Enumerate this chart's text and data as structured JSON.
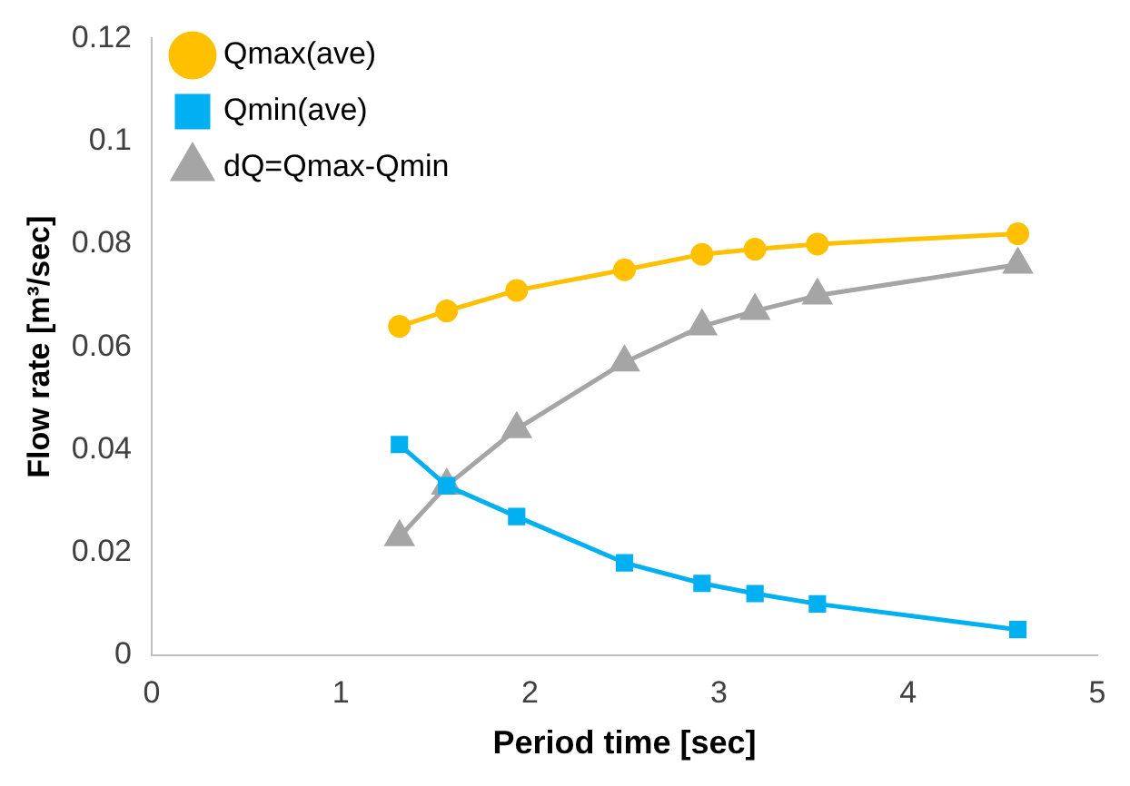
{
  "chart_data": {
    "type": "line",
    "xlabel": "Period time [sec]",
    "ylabel": "Flow rate [m³/sec]",
    "xlim": [
      0,
      5
    ],
    "xticks": [
      0,
      1,
      2,
      3,
      4,
      5
    ],
    "ylim": [
      0,
      0.12
    ],
    "yticks": [
      0,
      0.02,
      0.04,
      0.06,
      0.08,
      0.1,
      0.12
    ],
    "grid": false,
    "legend": "top left",
    "line_style": "solid",
    "x": [
      1.31,
      1.56,
      1.93,
      2.5,
      2.91,
      3.19,
      3.52,
      4.58
    ],
    "series": [
      {
        "name": "Qmax(ave)",
        "color": "#ffc000",
        "marker": "circle",
        "values": [
          0.064,
          0.067,
          0.071,
          0.075,
          0.078,
          0.079,
          0.08,
          0.082
        ]
      },
      {
        "name": "Qmin(ave)",
        "color": "#00b0f0",
        "marker": "square",
        "values": [
          0.041,
          0.033,
          0.027,
          0.018,
          0.014,
          0.012,
          0.01,
          0.005
        ]
      },
      {
        "name": "dQ=Qmax-Qmin",
        "color": "#a5a5a5",
        "marker": "triangle",
        "values": [
          0.023,
          0.033,
          0.044,
          0.057,
          0.064,
          0.067,
          0.07,
          0.076
        ]
      }
    ]
  }
}
